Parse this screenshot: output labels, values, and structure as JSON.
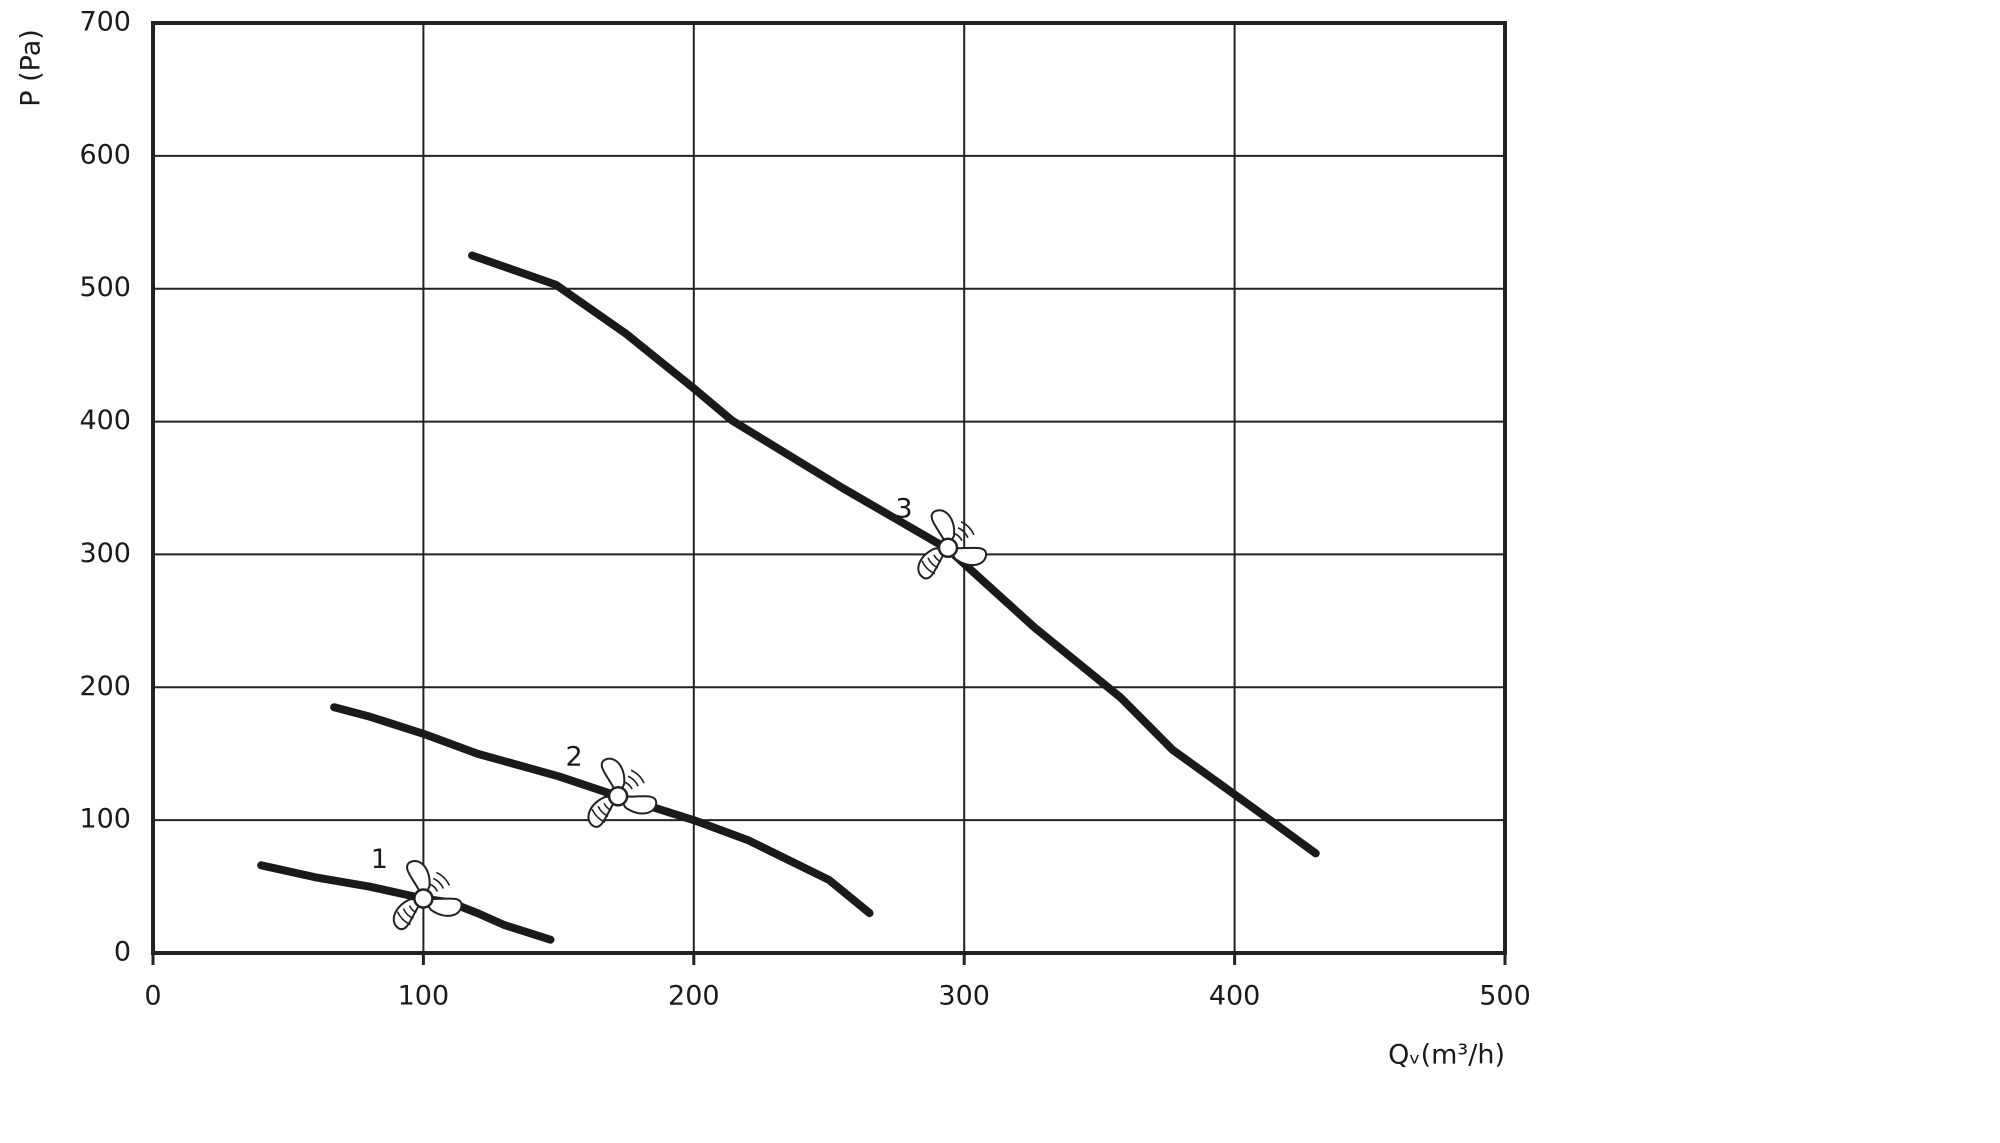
{
  "chart_data": {
    "type": "line",
    "x_label": "Qᵥ(m³/h)",
    "y_label": "P (Pa)",
    "xlim": [
      0,
      500
    ],
    "xticks": [
      0,
      100,
      200,
      300,
      400,
      500
    ],
    "ylim": [
      0,
      700
    ],
    "yticks": [
      0,
      100,
      200,
      300,
      400,
      500,
      600,
      700
    ],
    "grid": true,
    "series": [
      {
        "name": "1",
        "color": "#1a1a1a",
        "x": [
          40,
          60,
          80,
          100,
          110,
          120,
          130,
          147
        ],
        "values": [
          66,
          57,
          50,
          41,
          38,
          30,
          21,
          10
        ],
        "point": {
          "x": 100,
          "y": 41
        }
      },
      {
        "name": "2",
        "color": "#1a1a1a",
        "x": [
          67,
          80,
          100,
          120,
          150,
          172,
          200,
          220,
          250,
          265
        ],
        "values": [
          185,
          178,
          165,
          150,
          133,
          118,
          100,
          85,
          55,
          30
        ],
        "point": {
          "x": 172,
          "y": 118
        }
      },
      {
        "name": "3",
        "color": "#1a1a1a",
        "x": [
          118,
          149,
          175,
          200,
          214,
          255,
          294,
          326,
          358,
          377,
          405,
          430
        ],
        "values": [
          525,
          503,
          466,
          425,
          401,
          350,
          304,
          245,
          192,
          153,
          112,
          75
        ],
        "point": {
          "x": 294,
          "y": 305
        }
      }
    ]
  }
}
